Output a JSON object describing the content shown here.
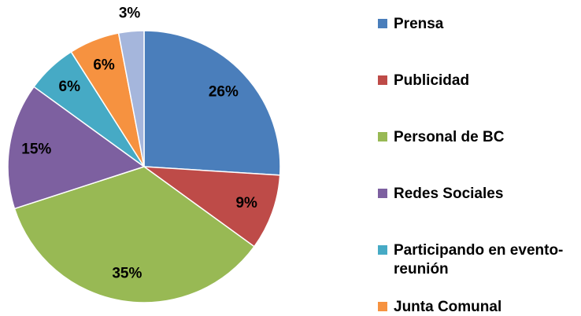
{
  "chart_data": {
    "type": "pie",
    "categories": [
      "Prensa",
      "Publicidad",
      "Personal de BC",
      "Redes Sociales",
      "Participando en evento-reunión",
      "Junta Comunal",
      null
    ],
    "values": [
      26,
      9,
      35,
      15,
      6,
      6,
      3
    ],
    "value_labels": [
      "26%",
      "9%",
      "35%",
      "15%",
      "6%",
      "6%",
      "3%"
    ],
    "colors": [
      "#4a7ebb",
      "#be4b48",
      "#98b954",
      "#7d60a0",
      "#46aac5",
      "#f69240",
      "#a5b6dc"
    ],
    "legend": "right"
  }
}
